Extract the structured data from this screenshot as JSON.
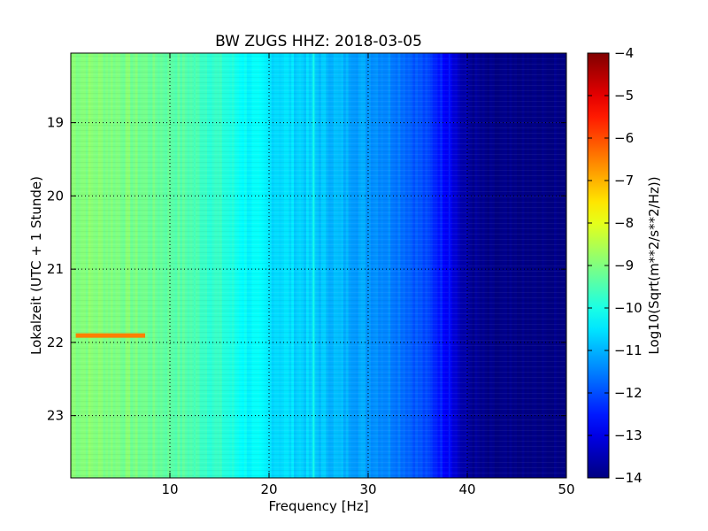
{
  "chart_data": {
    "type": "heatmap",
    "title": "BW ZUGS HHZ: 2018-03-05",
    "xlabel": "Frequency [Hz]",
    "ylabel": "Lokalzeit (UTC + 1 Stunde)",
    "xlim": [
      0,
      50
    ],
    "ylim": [
      18.05,
      23.85
    ],
    "y_inverted": true,
    "xticks": [
      10,
      20,
      30,
      40,
      50
    ],
    "yticks": [
      19,
      20,
      21,
      22,
      23
    ],
    "grid": true,
    "colormap": "jet",
    "colorbar": {
      "label": "Log10(Sqrt(m**2/s**2/Hz))",
      "range": [
        -14,
        -4
      ],
      "ticks": [
        -4,
        -5,
        -6,
        -7,
        -8,
        -9,
        -10,
        -11,
        -12,
        -13,
        -14
      ]
    },
    "frequency_profile": {
      "frequency_hz": [
        0,
        5,
        10,
        12.5,
        15,
        17.5,
        20,
        22.5,
        25,
        30,
        33,
        35,
        37,
        38.5,
        39.5,
        42,
        50
      ],
      "level": [
        -8.9,
        -9.0,
        -9.3,
        -9.5,
        -9.8,
        -10.2,
        -10.5,
        -10.6,
        -10.8,
        -11.2,
        -11.5,
        -11.9,
        -12.4,
        -12.9,
        -13.6,
        -14.0,
        -14.0
      ]
    },
    "features": [
      {
        "type": "horizontal_line",
        "time": 21.9,
        "freq_range": [
          0.5,
          7.5
        ],
        "level": -6.5
      },
      {
        "type": "vertical_line",
        "freq": 24.5,
        "level": -10.0
      },
      {
        "type": "vertical_line",
        "freq": 38.2,
        "level": -12.5
      },
      {
        "type": "vertical_line",
        "freq": 12.5,
        "level": -9.6
      }
    ]
  }
}
